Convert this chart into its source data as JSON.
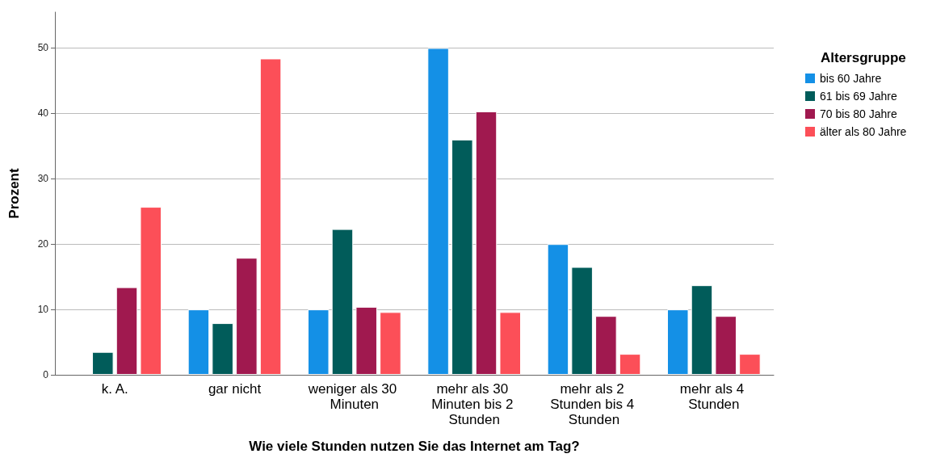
{
  "chart_data": {
    "type": "bar",
    "xlabel": "Wie viele Stunden nutzen Sie das Internet am Tag?",
    "ylabel": "Prozent",
    "legend_title": "Altersgruppe",
    "categories": [
      "k. A.",
      "gar nicht",
      "weniger als 30 Minuten",
      "mehr als 30 Minuten bis 2 Stunden",
      "mehr als 2 Stunden bis 4 Stunden",
      "mehr als 4 Stunden"
    ],
    "series": [
      {
        "name": "bis 60 Jahre",
        "color": "#1490e6",
        "values": [
          null,
          10,
          10,
          50,
          20,
          10
        ]
      },
      {
        "name": "61 bis 69 Jahre",
        "color": "#015c5a",
        "values": [
          3.5,
          7.9,
          22.3,
          36.0,
          16.5,
          13.7
        ]
      },
      {
        "name": "70 bis 80 Jahre",
        "color": "#a0194f",
        "values": [
          13.4,
          17.9,
          10.4,
          40.3,
          9.0,
          9.0
        ]
      },
      {
        "name": "älter als 80 Jahre",
        "color": "#fc4f58",
        "values": [
          25.7,
          48.4,
          9.6,
          9.6,
          3.2,
          3.2
        ]
      }
    ],
    "ylim": [
      0,
      55.5
    ],
    "yticks": [
      0,
      10,
      20,
      30,
      40,
      50
    ],
    "grid": "y",
    "legend": "top right"
  }
}
